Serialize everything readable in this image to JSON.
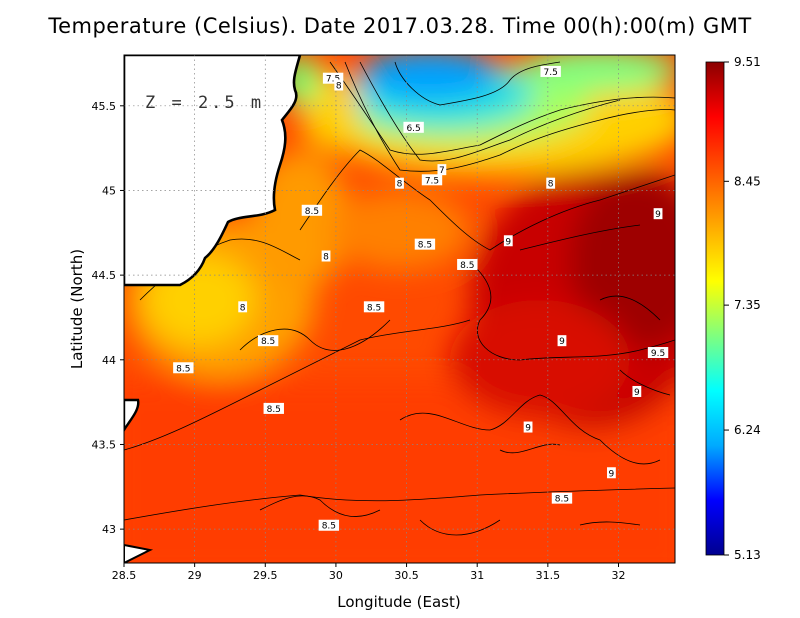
{
  "title": "Temperature (Celsius). Date 2017.03.28. Time 00(h):00(m) GMT",
  "depth_label": "Z = 2.5 m",
  "chart_data": {
    "type": "heatmap",
    "xlabel": "Longitude (East)",
    "ylabel": "Latitude (North)",
    "xlim": [
      28.5,
      32.4
    ],
    "ylim": [
      42.8,
      45.8
    ],
    "x_ticks": [
      "28.5",
      "29",
      "29.5",
      "30",
      "30.5",
      "31",
      "31.5",
      "32"
    ],
    "y_ticks": [
      "43",
      "43.5",
      "44",
      "44.5",
      "45",
      "45.5"
    ],
    "grid": true,
    "colorbar": {
      "min": 5.13,
      "max": 9.51,
      "ticks": [
        "9.51",
        "8.45",
        "7.35",
        "6.24",
        "5.13"
      ],
      "colors": [
        "#00008f",
        "#0000ff",
        "#00aaff",
        "#00ffff",
        "#7fff7f",
        "#ffff00",
        "#ffaa00",
        "#ff5500",
        "#ff0000",
        "#8b0000"
      ]
    },
    "contour_labels": [
      {
        "text": "7.5",
        "lon": 29.98,
        "lat": 45.66
      },
      {
        "text": "8",
        "lon": 30.02,
        "lat": 45.62
      },
      {
        "text": "7.5",
        "lon": 31.52,
        "lat": 45.7
      },
      {
        "text": "6.5",
        "lon": 30.55,
        "lat": 45.37
      },
      {
        "text": "7",
        "lon": 30.75,
        "lat": 45.12
      },
      {
        "text": "7.5",
        "lon": 30.68,
        "lat": 45.06
      },
      {
        "text": "8",
        "lon": 30.45,
        "lat": 45.04
      },
      {
        "text": "8",
        "lon": 31.52,
        "lat": 45.04
      },
      {
        "text": "8.5",
        "lon": 29.83,
        "lat": 44.88
      },
      {
        "text": "8.5",
        "lon": 30.63,
        "lat": 44.68
      },
      {
        "text": "9",
        "lon": 31.22,
        "lat": 44.7
      },
      {
        "text": "9",
        "lon": 32.28,
        "lat": 44.86
      },
      {
        "text": "8",
        "lon": 29.93,
        "lat": 44.61
      },
      {
        "text": "8.5",
        "lon": 30.93,
        "lat": 44.56
      },
      {
        "text": "8",
        "lon": 29.34,
        "lat": 44.31
      },
      {
        "text": "8.5",
        "lon": 30.27,
        "lat": 44.31
      },
      {
        "text": "8.5",
        "lon": 29.52,
        "lat": 44.11
      },
      {
        "text": "9",
        "lon": 31.6,
        "lat": 44.11
      },
      {
        "text": "9.5",
        "lon": 32.28,
        "lat": 44.04
      },
      {
        "text": "8.5",
        "lon": 28.92,
        "lat": 43.95
      },
      {
        "text": "9",
        "lon": 32.13,
        "lat": 43.81
      },
      {
        "text": "8.5",
        "lon": 29.56,
        "lat": 43.71
      },
      {
        "text": "9",
        "lon": 31.36,
        "lat": 43.6
      },
      {
        "text": "9",
        "lon": 31.95,
        "lat": 43.33
      },
      {
        "text": "8.5",
        "lon": 31.6,
        "lat": 43.18
      },
      {
        "text": "8.5",
        "lon": 29.95,
        "lat": 43.02
      }
    ]
  }
}
